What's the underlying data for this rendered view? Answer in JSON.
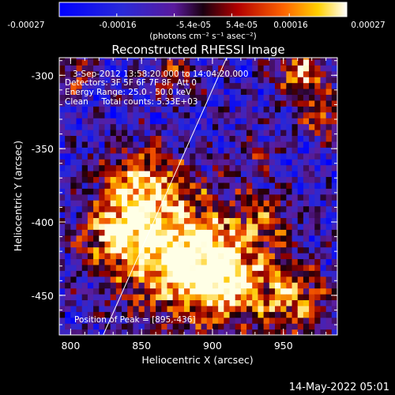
{
  "colorbar": {
    "ticks": [
      "-0.00027",
      "-0.00016",
      "-5.4e-05",
      "5.4e-05",
      "0.00016",
      "0.00027"
    ],
    "units": "(photons cm⁻² s⁻¹ asec⁻²)",
    "range": [
      -0.00027,
      0.00027
    ]
  },
  "chart_data": {
    "type": "heatmap",
    "title": "Reconstructed RHESSI Image",
    "xlabel": "Heliocentric X (arcsec)",
    "ylabel": "Heliocentric Y (arcsec)",
    "xlim": [
      792,
      988
    ],
    "ylim": [
      -477,
      -288
    ],
    "x_ticks": [
      "800",
      "850",
      "900",
      "950"
    ],
    "y_ticks": [
      "-300",
      "-350",
      "-400",
      "-450"
    ],
    "annotations": [
      "3-Sep-2012 13:58:20.000 to 14:04:20.000",
      "Detectors: 3F 5F 6F 7F 8F, Att 0",
      "Energy Range: 25.0 - 50.0 keV",
      "Clean     Total counts: 5.33E+03"
    ],
    "peak_label": "Position of Peak = [895,-436]",
    "peak": [
      895,
      -436
    ],
    "limb_line": [
      [
        823,
        -477
      ],
      [
        910,
        -288
      ]
    ],
    "grid": false,
    "pixel_size_arcsec": 4
  },
  "footer": {
    "timestamp": "14-May-2022 05:01"
  },
  "colors": {
    "axes": "#ffffff",
    "background": "#000000"
  }
}
